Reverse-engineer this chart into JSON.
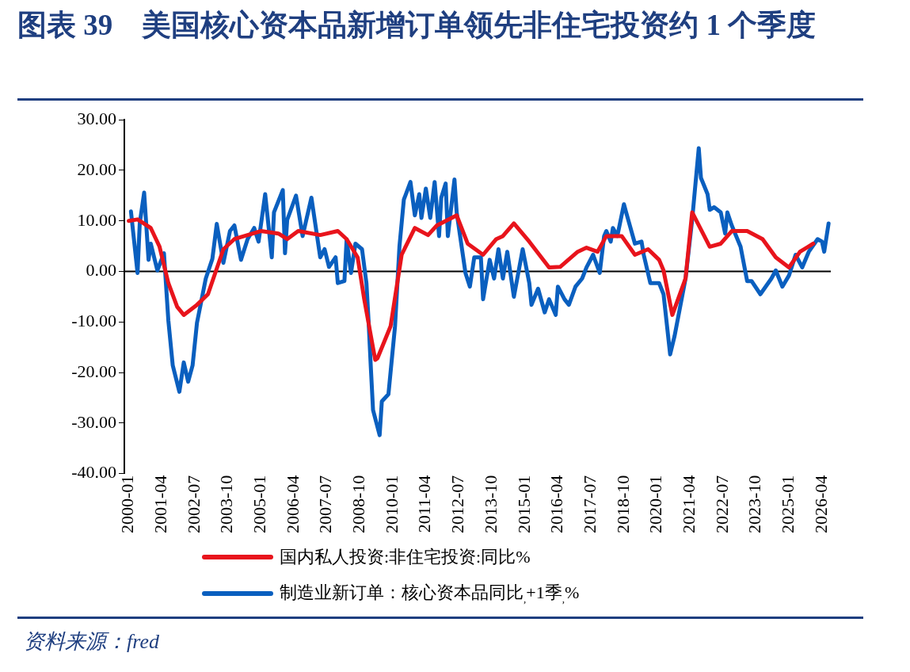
{
  "chart_data": {
    "type": "line",
    "title": "图表 39　美国核心资本品新增订单领先非住宅投资约 1 个季度",
    "annotations": [
      "资料来源：fred"
    ],
    "xlim": [
      "1999-11",
      "2026-08"
    ],
    "xticks": [
      "2000-01",
      "2001-04",
      "2002-07",
      "2003-10",
      "2005-01",
      "2006-04",
      "2007-07",
      "2008-10",
      "2010-01",
      "2011-04",
      "2012-07",
      "2013-10",
      "2015-01",
      "2016-04",
      "2017-07",
      "2018-10",
      "2020-01",
      "2021-04",
      "2022-07",
      "2023-10",
      "2025-01",
      "2026-04"
    ],
    "ylim": [
      -40,
      30
    ],
    "yticks": [
      {
        "value": -40,
        "label": "-40.00"
      },
      {
        "value": -30,
        "label": "-30.00"
      },
      {
        "value": -20,
        "label": "-20.00"
      },
      {
        "value": -10,
        "label": "-10.00"
      },
      {
        "value": 0,
        "label": "0.00"
      },
      {
        "value": 10,
        "label": "10.00"
      },
      {
        "value": 20,
        "label": "20.00"
      },
      {
        "value": 30,
        "label": "30.00"
      }
    ],
    "grid": false,
    "ref_lines": [
      {
        "axis": "y",
        "value": 0,
        "color": "#000000"
      }
    ],
    "legend": "bottom",
    "marker": "none",
    "line_style": "solid",
    "series": [
      {
        "name": "国内私人投资:非住宅投资:同比%",
        "color": "#e8141c",
        "x": [
          "2000-01",
          "2000-05",
          "2000-11",
          "2001-03",
          "2001-07",
          "2001-11",
          "2002-02",
          "2002-08",
          "2003-01",
          "2003-08",
          "2004-01",
          "2005-01",
          "2005-09",
          "2006-01",
          "2006-06",
          "2007-04",
          "2007-12",
          "2008-04",
          "2008-09",
          "2008-12",
          "2009-05",
          "2009-06",
          "2009-12",
          "2010-05",
          "2010-11",
          "2011-05",
          "2011-09",
          "2012-06",
          "2012-11",
          "2013-06",
          "2013-12",
          "2014-03",
          "2014-08",
          "2015-03",
          "2015-12",
          "2016-05",
          "2017-01",
          "2017-05",
          "2017-10",
          "2018-02",
          "2018-09",
          "2019-03",
          "2019-09",
          "2020-02",
          "2020-04",
          "2020-08",
          "2021-02",
          "2021-05",
          "2022-01",
          "2022-06",
          "2022-11",
          "2023-06",
          "2024-01",
          "2024-07",
          "2025-01",
          "2025-06",
          "2025-12"
        ],
        "values": [
          10,
          10.3,
          8.6,
          4.9,
          -2.3,
          -7.0,
          -8.6,
          -6.6,
          -4.5,
          4.4,
          6.4,
          8.0,
          7.5,
          6.4,
          8.0,
          7.2,
          8.0,
          6.4,
          2.8,
          -5.5,
          -17.5,
          -17.2,
          -10.8,
          3.3,
          8.6,
          7.2,
          9.1,
          11.1,
          5.5,
          3.3,
          6.4,
          7.0,
          9.5,
          5.9,
          0.8,
          0.9,
          3.9,
          4.7,
          3.9,
          7.0,
          7.0,
          3.3,
          4.4,
          2.3,
          0.2,
          -8.6,
          -1.4,
          11.7,
          4.9,
          5.5,
          8.0,
          8.0,
          6.4,
          2.8,
          0.8,
          3.9,
          5.5
        ]
      },
      {
        "name": "制造业新订单：核心资本品同比$_{,}$+1季$_{,}$%",
        "color": "#0a5fbf",
        "x": [
          "2000-02",
          "2000-05",
          "2000-06",
          "2000-08",
          "2000-10",
          "2000-11",
          "2001-02",
          "2001-05",
          "2001-07",
          "2001-09",
          "2001-12",
          "2002-02",
          "2002-04",
          "2002-06",
          "2002-08",
          "2002-12",
          "2003-03",
          "2003-05",
          "2003-08",
          "2003-11",
          "2004-01",
          "2004-04",
          "2004-07",
          "2004-10",
          "2004-12",
          "2005-03",
          "2005-06",
          "2005-07",
          "2005-11",
          "2005-12",
          "2006-01",
          "2006-05",
          "2006-08",
          "2006-12",
          "2007-04",
          "2007-06",
          "2007-08",
          "2007-11",
          "2007-12",
          "2008-03",
          "2008-04",
          "2008-06",
          "2008-08",
          "2008-11",
          "2009-01",
          "2009-02",
          "2009-03",
          "2009-04",
          "2009-07",
          "2009-08",
          "2009-11",
          "2010-02",
          "2010-04",
          "2010-06",
          "2010-09",
          "2010-11",
          "2011-01",
          "2011-02",
          "2011-04",
          "2011-06",
          "2011-08",
          "2011-10",
          "2011-11",
          "2012-01",
          "2012-02",
          "2012-05",
          "2012-06",
          "2012-10",
          "2012-12",
          "2013-02",
          "2013-05",
          "2013-06",
          "2013-09",
          "2013-11",
          "2014-01",
          "2014-03",
          "2014-05",
          "2014-08",
          "2014-12",
          "2015-03",
          "2015-04",
          "2015-07",
          "2015-10",
          "2015-12",
          "2016-03",
          "2016-04",
          "2016-07",
          "2016-09",
          "2016-12",
          "2017-03",
          "2017-05",
          "2017-08",
          "2017-11",
          "2018-01",
          "2018-02",
          "2018-04",
          "2018-05",
          "2018-07",
          "2018-10",
          "2018-11",
          "2019-03",
          "2019-06",
          "2019-07",
          "2019-10",
          "2020-02",
          "2020-04",
          "2020-07",
          "2020-09",
          "2021-02",
          "2021-05",
          "2021-08",
          "2021-09",
          "2021-12",
          "2022-01",
          "2022-03",
          "2022-06",
          "2022-08",
          "2022-09",
          "2022-11",
          "2023-03",
          "2023-06",
          "2023-08",
          "2023-12",
          "2024-05",
          "2024-07",
          "2024-10",
          "2025-01",
          "2025-04",
          "2025-07",
          "2025-10",
          "2026-02",
          "2026-04",
          "2026-05",
          "2026-07"
        ],
        "values": [
          11.9,
          -0.3,
          9.5,
          15.6,
          2.3,
          5.5,
          0.2,
          3.6,
          -9.7,
          -18.6,
          -23.8,
          -18,
          -21.8,
          -18.6,
          -10.2,
          -1.4,
          2.5,
          9.4,
          1.7,
          8.0,
          9.1,
          2.3,
          6.4,
          8.6,
          5.9,
          15.3,
          2.8,
          11.7,
          16.1,
          3.6,
          10.2,
          15.0,
          7.0,
          14.6,
          2.8,
          4.4,
          0.9,
          2.8,
          -2.3,
          -1.9,
          6.3,
          -0.3,
          5.5,
          4.4,
          -2.3,
          -10,
          -19,
          -27.4,
          -32.4,
          -25.7,
          -24.3,
          -10.8,
          4.9,
          14.2,
          17.7,
          11.1,
          15.3,
          10.6,
          16.4,
          10.6,
          17.7,
          7.0,
          14.6,
          17.4,
          7.0,
          18.2,
          11.7,
          -0.3,
          -3.0,
          2.8,
          2.8,
          -5.5,
          2.3,
          -1.4,
          4.4,
          -1.4,
          3.9,
          -5.0,
          4.4,
          -2.3,
          -6.6,
          -3.4,
          -8.1,
          -5.5,
          -8.6,
          -3.0,
          -5.5,
          -6.6,
          -3.0,
          -1.4,
          0.8,
          3.3,
          -0.3,
          7.0,
          8.0,
          5.9,
          8.6,
          7.0,
          13.3,
          11.7,
          5.5,
          5.9,
          3.3,
          -2.3,
          -2.3,
          -4.5,
          -16.4,
          -12.8,
          -1.4,
          10.2,
          24.4,
          18.5,
          15.3,
          12.2,
          12.7,
          11.7,
          7.5,
          11.7,
          9.1,
          4.9,
          -1.9,
          -1.9,
          -4.5,
          -1.4,
          0.2,
          -3.0,
          -0.8,
          3.3,
          0.8,
          3.9,
          6.4,
          5.9,
          3.9,
          9.5
        ]
      }
    ]
  }
}
